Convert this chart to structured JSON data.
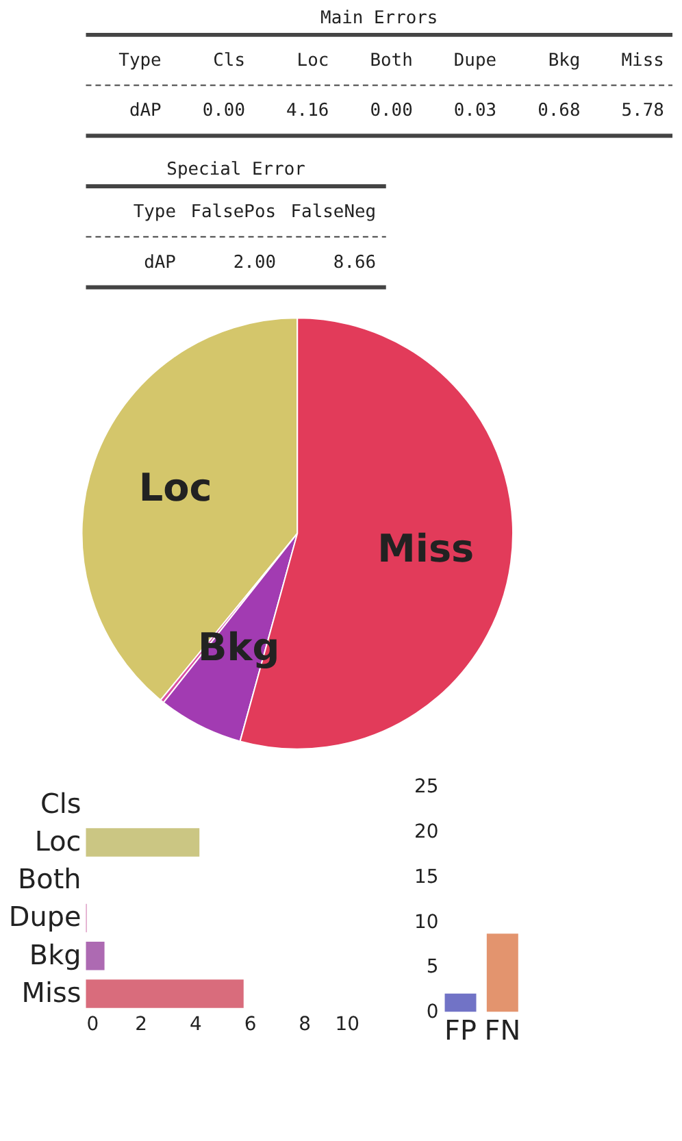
{
  "chart_data": [
    {
      "type": "other",
      "title": "Main Errors",
      "categories": [
        "Type",
        "Cls",
        "Loc",
        "Both",
        "Dupe",
        "Bkg",
        "Miss"
      ],
      "cell_labels": [
        [
          "dAP",
          "0.00",
          "4.16",
          "0.00",
          "0.03",
          "0.68",
          "5.78"
        ]
      ]
    },
    {
      "type": "other",
      "title": "Special Error",
      "categories": [
        "Type",
        "FalsePos",
        "FalseNeg"
      ],
      "cell_labels": [
        [
          "dAP",
          "2.00",
          "8.66"
        ]
      ]
    },
    {
      "type": "pie",
      "categories": [
        "Loc",
        null,
        "Bkg",
        "Miss"
      ],
      "values": [
        39.06,
        0.28,
        6.38,
        54.28
      ],
      "colors": [
        "#d4c66b",
        "#d94fa3",
        "#a23bb2",
        "#e23b5a"
      ]
    },
    {
      "type": "bar",
      "orientation": "horizontal",
      "categories": [
        "Cls",
        "Loc",
        "Both",
        "Dupe",
        "Bkg",
        "Miss"
      ],
      "values": [
        0.0,
        4.16,
        0.0,
        0.03,
        0.68,
        5.78
      ],
      "colors": [
        "#5fa0c8",
        "#c5c076",
        "#70b070",
        "#d07ab0",
        "#a45aaa",
        "#d55c6e"
      ],
      "xlim": [
        0,
        10
      ],
      "xticks": [
        0,
        2,
        4,
        6,
        8,
        10
      ],
      "grid": false
    },
    {
      "type": "bar",
      "categories": [
        "FP",
        "FN"
      ],
      "values": [
        2.0,
        8.66
      ],
      "colors": [
        "#6264c0",
        "#e0885e"
      ],
      "ylim": [
        0,
        25
      ],
      "yticks": [
        0,
        5,
        10,
        15,
        20,
        25
      ],
      "grid": false
    }
  ]
}
